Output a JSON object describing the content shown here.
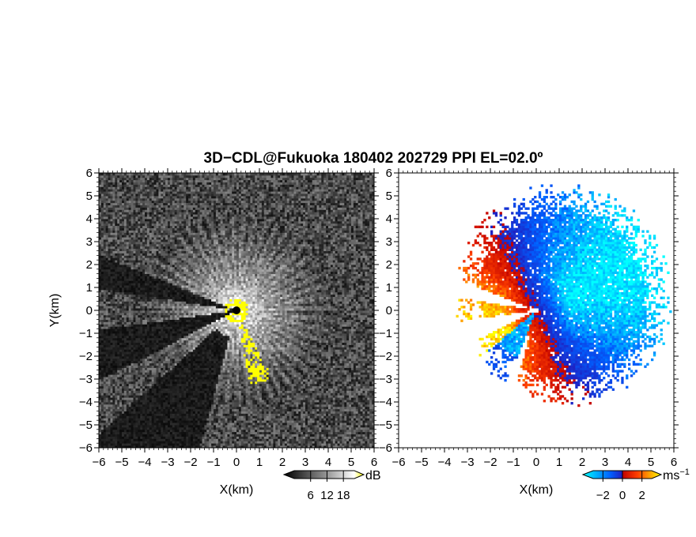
{
  "title": "3D−CDL@Fukuoka 180402 202729 PPI EL=02.0º",
  "chart_data": [
    {
      "type": "heatmap",
      "panel": "reflectivity",
      "xlabel": "X(km)",
      "ylabel": "Y(km)",
      "xlim": [
        -6,
        6
      ],
      "ylim": [
        -6,
        6
      ],
      "x_ticks": [
        "−6",
        "−5",
        "−4",
        "−3",
        "−2",
        "−1",
        "0",
        "1",
        "2",
        "3",
        "4",
        "5",
        "6"
      ],
      "y_ticks": [
        "6",
        "5",
        "4",
        "3",
        "2",
        "1",
        "0",
        "−1",
        "−2",
        "−3",
        "−4",
        "−5",
        "−6"
      ],
      "colorbar": {
        "unit": "dB",
        "ticks": [
          "6",
          "12",
          "18"
        ],
        "range": [
          0,
          22
        ],
        "colors": [
          "#000000",
          "#ffffff",
          "#ffff00"
        ]
      }
    },
    {
      "type": "heatmap",
      "panel": "doppler-velocity",
      "xlabel": "X(km)",
      "xlim": [
        -6,
        6
      ],
      "ylim": [
        -6,
        6
      ],
      "x_ticks": [
        "−6",
        "−5",
        "−4",
        "−3",
        "−2",
        "−1",
        "0",
        "1",
        "2",
        "3",
        "4",
        "5",
        "6"
      ],
      "y_ticks": [
        "6",
        "5",
        "4",
        "3",
        "2",
        "1",
        "0",
        "−1",
        "−2",
        "−3",
        "−4",
        "−5",
        "−6"
      ],
      "colorbar": {
        "unit": "ms",
        "unit_exp": "−1",
        "ticks": [
          "−2",
          "0",
          "2"
        ],
        "range": [
          -3,
          3
        ],
        "colors": [
          "#00ffff",
          "#0000ff",
          "#ff0000",
          "#ffff00"
        ]
      }
    }
  ]
}
